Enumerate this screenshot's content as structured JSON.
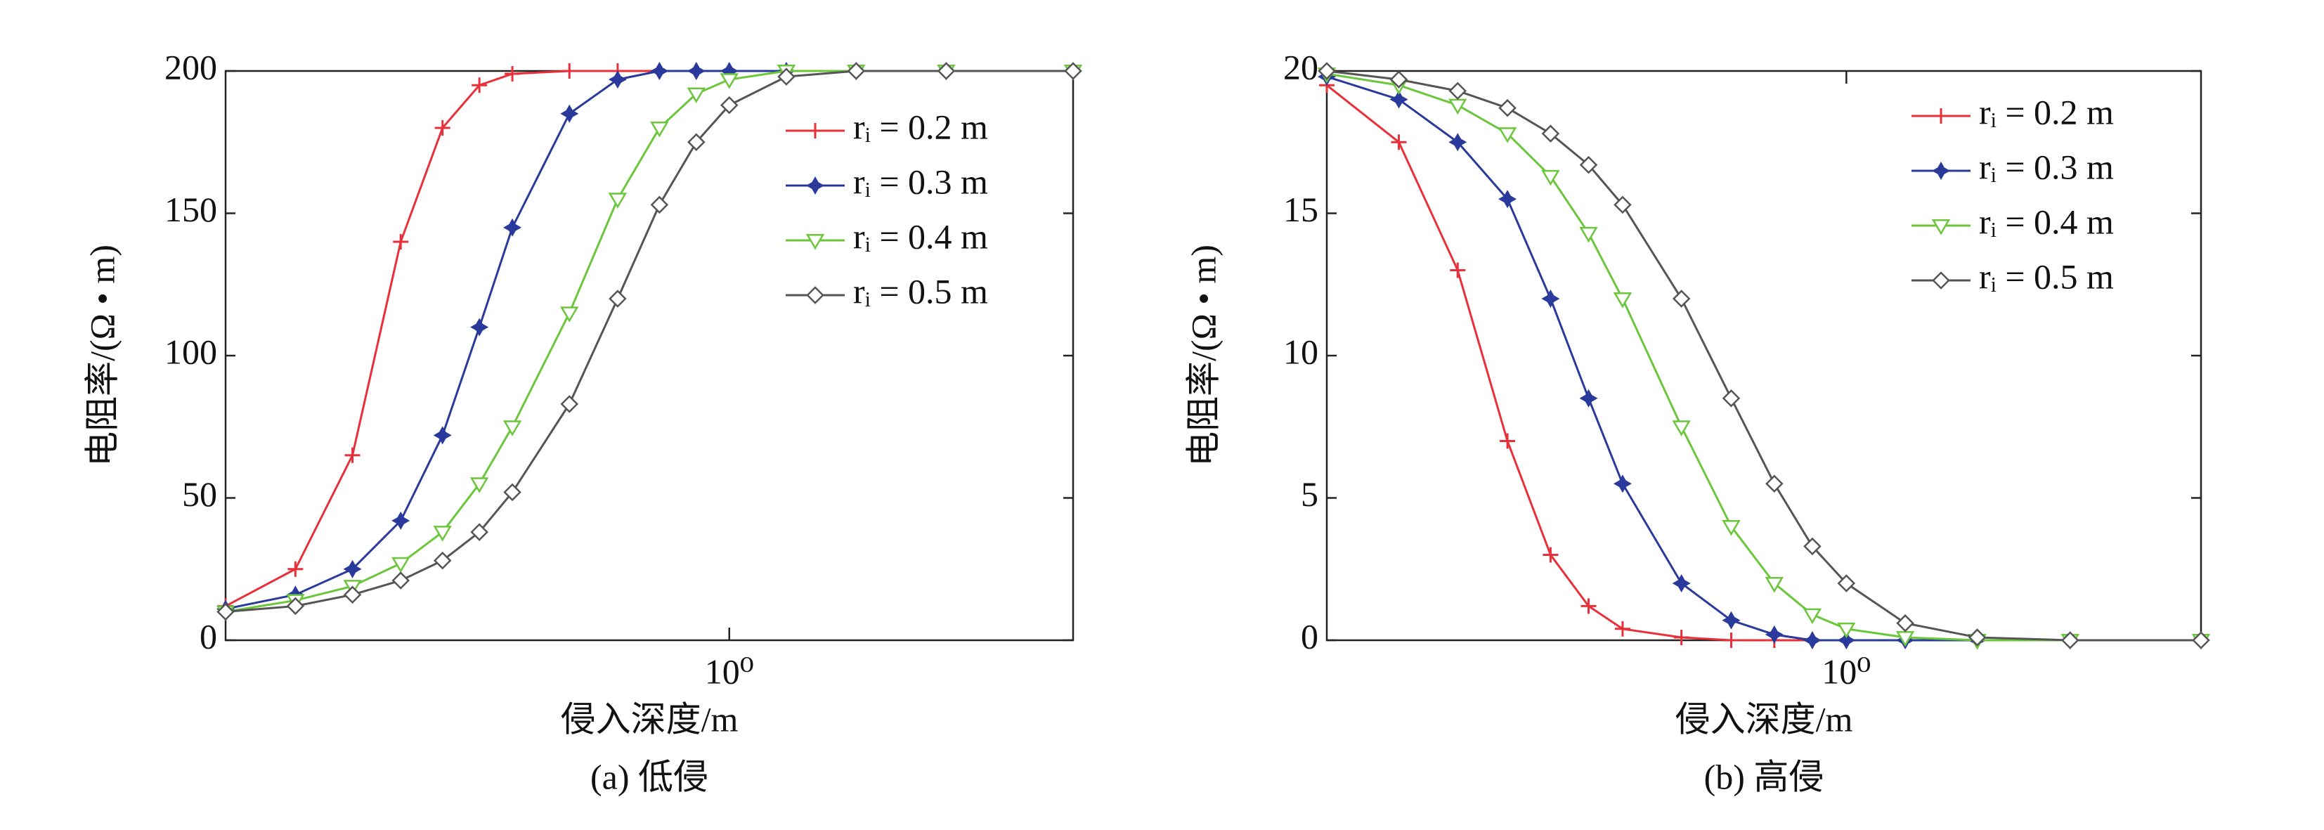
{
  "chart_data": [
    {
      "type": "line",
      "caption": "(a) 低侵",
      "xlabel": "侵入深度/m",
      "ylabel": "电阻率/(Ω • m)",
      "xscale": "log",
      "xlim": [
        0.2,
        3
      ],
      "xticks": [
        {
          "value": 1,
          "label": "10⁰"
        }
      ],
      "ylim": [
        0,
        200
      ],
      "yticks": [
        0,
        50,
        100,
        150,
        200
      ],
      "legend": "upper right",
      "x": [
        0.2,
        0.25,
        0.3,
        0.35,
        0.4,
        0.45,
        0.5,
        0.6,
        0.7,
        0.8,
        0.9,
        1.0,
        1.2,
        1.5,
        2,
        3
      ],
      "series": [
        {
          "name": "rᵢ = 0.2 m",
          "color": "#e8303a",
          "marker": "plus",
          "values": [
            12,
            25,
            65,
            140,
            180,
            195,
            199,
            200,
            200,
            200,
            200,
            200,
            200,
            200,
            200,
            200
          ]
        },
        {
          "name": "rᵢ = 0.3 m",
          "color": "#2a3a9c",
          "marker": "star",
          "values": [
            11,
            16,
            25,
            42,
            72,
            110,
            145,
            185,
            197,
            200,
            200,
            200,
            200,
            200,
            200,
            200
          ]
        },
        {
          "name": "rᵢ = 0.4 m",
          "color": "#6cc63c",
          "marker": "tri",
          "values": [
            10,
            14,
            19,
            27,
            38,
            55,
            75,
            115,
            155,
            180,
            192,
            197,
            200,
            200,
            200,
            200
          ]
        },
        {
          "name": "rᵢ = 0.5 m",
          "color": "#555555",
          "marker": "diamond",
          "values": [
            10,
            12,
            16,
            21,
            28,
            38,
            52,
            83,
            120,
            153,
            175,
            188,
            198,
            200,
            200,
            200
          ]
        }
      ]
    },
    {
      "type": "line",
      "caption": "(b) 高侵",
      "xlabel": "侵入深度/m",
      "ylabel": "电阻率/(Ω • m)",
      "xscale": "log",
      "xlim": [
        0.2,
        3
      ],
      "xticks": [
        {
          "value": 1,
          "label": "10⁰"
        }
      ],
      "ylim": [
        0,
        20
      ],
      "yticks": [
        0,
        5,
        10,
        15,
        20
      ],
      "legend": "upper right",
      "x": [
        0.2,
        0.25,
        0.3,
        0.35,
        0.4,
        0.45,
        0.5,
        0.6,
        0.7,
        0.8,
        0.9,
        1.0,
        1.2,
        1.5,
        2,
        3
      ],
      "series": [
        {
          "name": "rᵢ = 0.2 m",
          "color": "#e8303a",
          "marker": "plus",
          "values": [
            19.5,
            17.5,
            13,
            7,
            3,
            1.2,
            0.4,
            0.1,
            0,
            0,
            0,
            0,
            0,
            0,
            0,
            0
          ]
        },
        {
          "name": "rᵢ = 0.3 m",
          "color": "#2a3a9c",
          "marker": "star",
          "values": [
            19.8,
            19,
            17.5,
            15.5,
            12,
            8.5,
            5.5,
            2,
            0.7,
            0.2,
            0,
            0,
            0,
            0,
            0,
            0
          ]
        },
        {
          "name": "rᵢ = 0.4 m",
          "color": "#6cc63c",
          "marker": "tri",
          "values": [
            19.9,
            19.5,
            18.8,
            17.8,
            16.3,
            14.3,
            12,
            7.5,
            4,
            2,
            0.9,
            0.4,
            0.1,
            0,
            0,
            0
          ]
        },
        {
          "name": "rᵢ = 0.5 m",
          "color": "#555555",
          "marker": "diamond",
          "values": [
            20,
            19.7,
            19.3,
            18.7,
            17.8,
            16.7,
            15.3,
            12,
            8.5,
            5.5,
            3.3,
            2,
            0.6,
            0.1,
            0,
            0
          ]
        }
      ]
    }
  ]
}
